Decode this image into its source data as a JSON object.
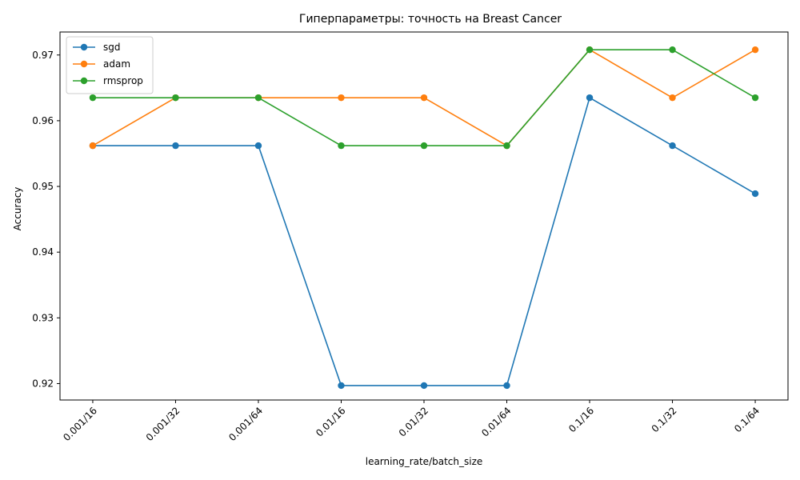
{
  "chart_data": {
    "type": "line",
    "title": "Гиперпараметры: точность на Breast Cancer",
    "xlabel": "learning_rate/batch_size",
    "ylabel": "Accuracy",
    "categories": [
      "0.001/16",
      "0.001/32",
      "0.001/64",
      "0.01/16",
      "0.01/32",
      "0.01/64",
      "0.1/16",
      "0.1/32",
      "0.1/64"
    ],
    "ylim": [
      0.9175,
      0.9735
    ],
    "yticks": [
      0.92,
      0.93,
      0.94,
      0.95,
      0.96,
      0.97
    ],
    "ytick_labels": [
      "0.92",
      "0.93",
      "0.94",
      "0.95",
      "0.96",
      "0.97"
    ],
    "grid": false,
    "legend_position": "upper-left",
    "series": [
      {
        "name": "sgd",
        "color": "#1f77b4",
        "values": [
          0.9562,
          0.9562,
          0.9562,
          0.9197,
          0.9197,
          0.9197,
          0.9635,
          0.9562,
          0.9489
        ]
      },
      {
        "name": "adam",
        "color": "#ff7f0e",
        "values": [
          0.9562,
          0.9635,
          0.9635,
          0.9635,
          0.9635,
          0.9562,
          0.9708,
          0.9635,
          0.9708
        ]
      },
      {
        "name": "rmsprop",
        "color": "#2ca02c",
        "values": [
          0.9635,
          0.9635,
          0.9635,
          0.9562,
          0.9562,
          0.9562,
          0.9708,
          0.9708,
          0.9635
        ]
      }
    ]
  }
}
